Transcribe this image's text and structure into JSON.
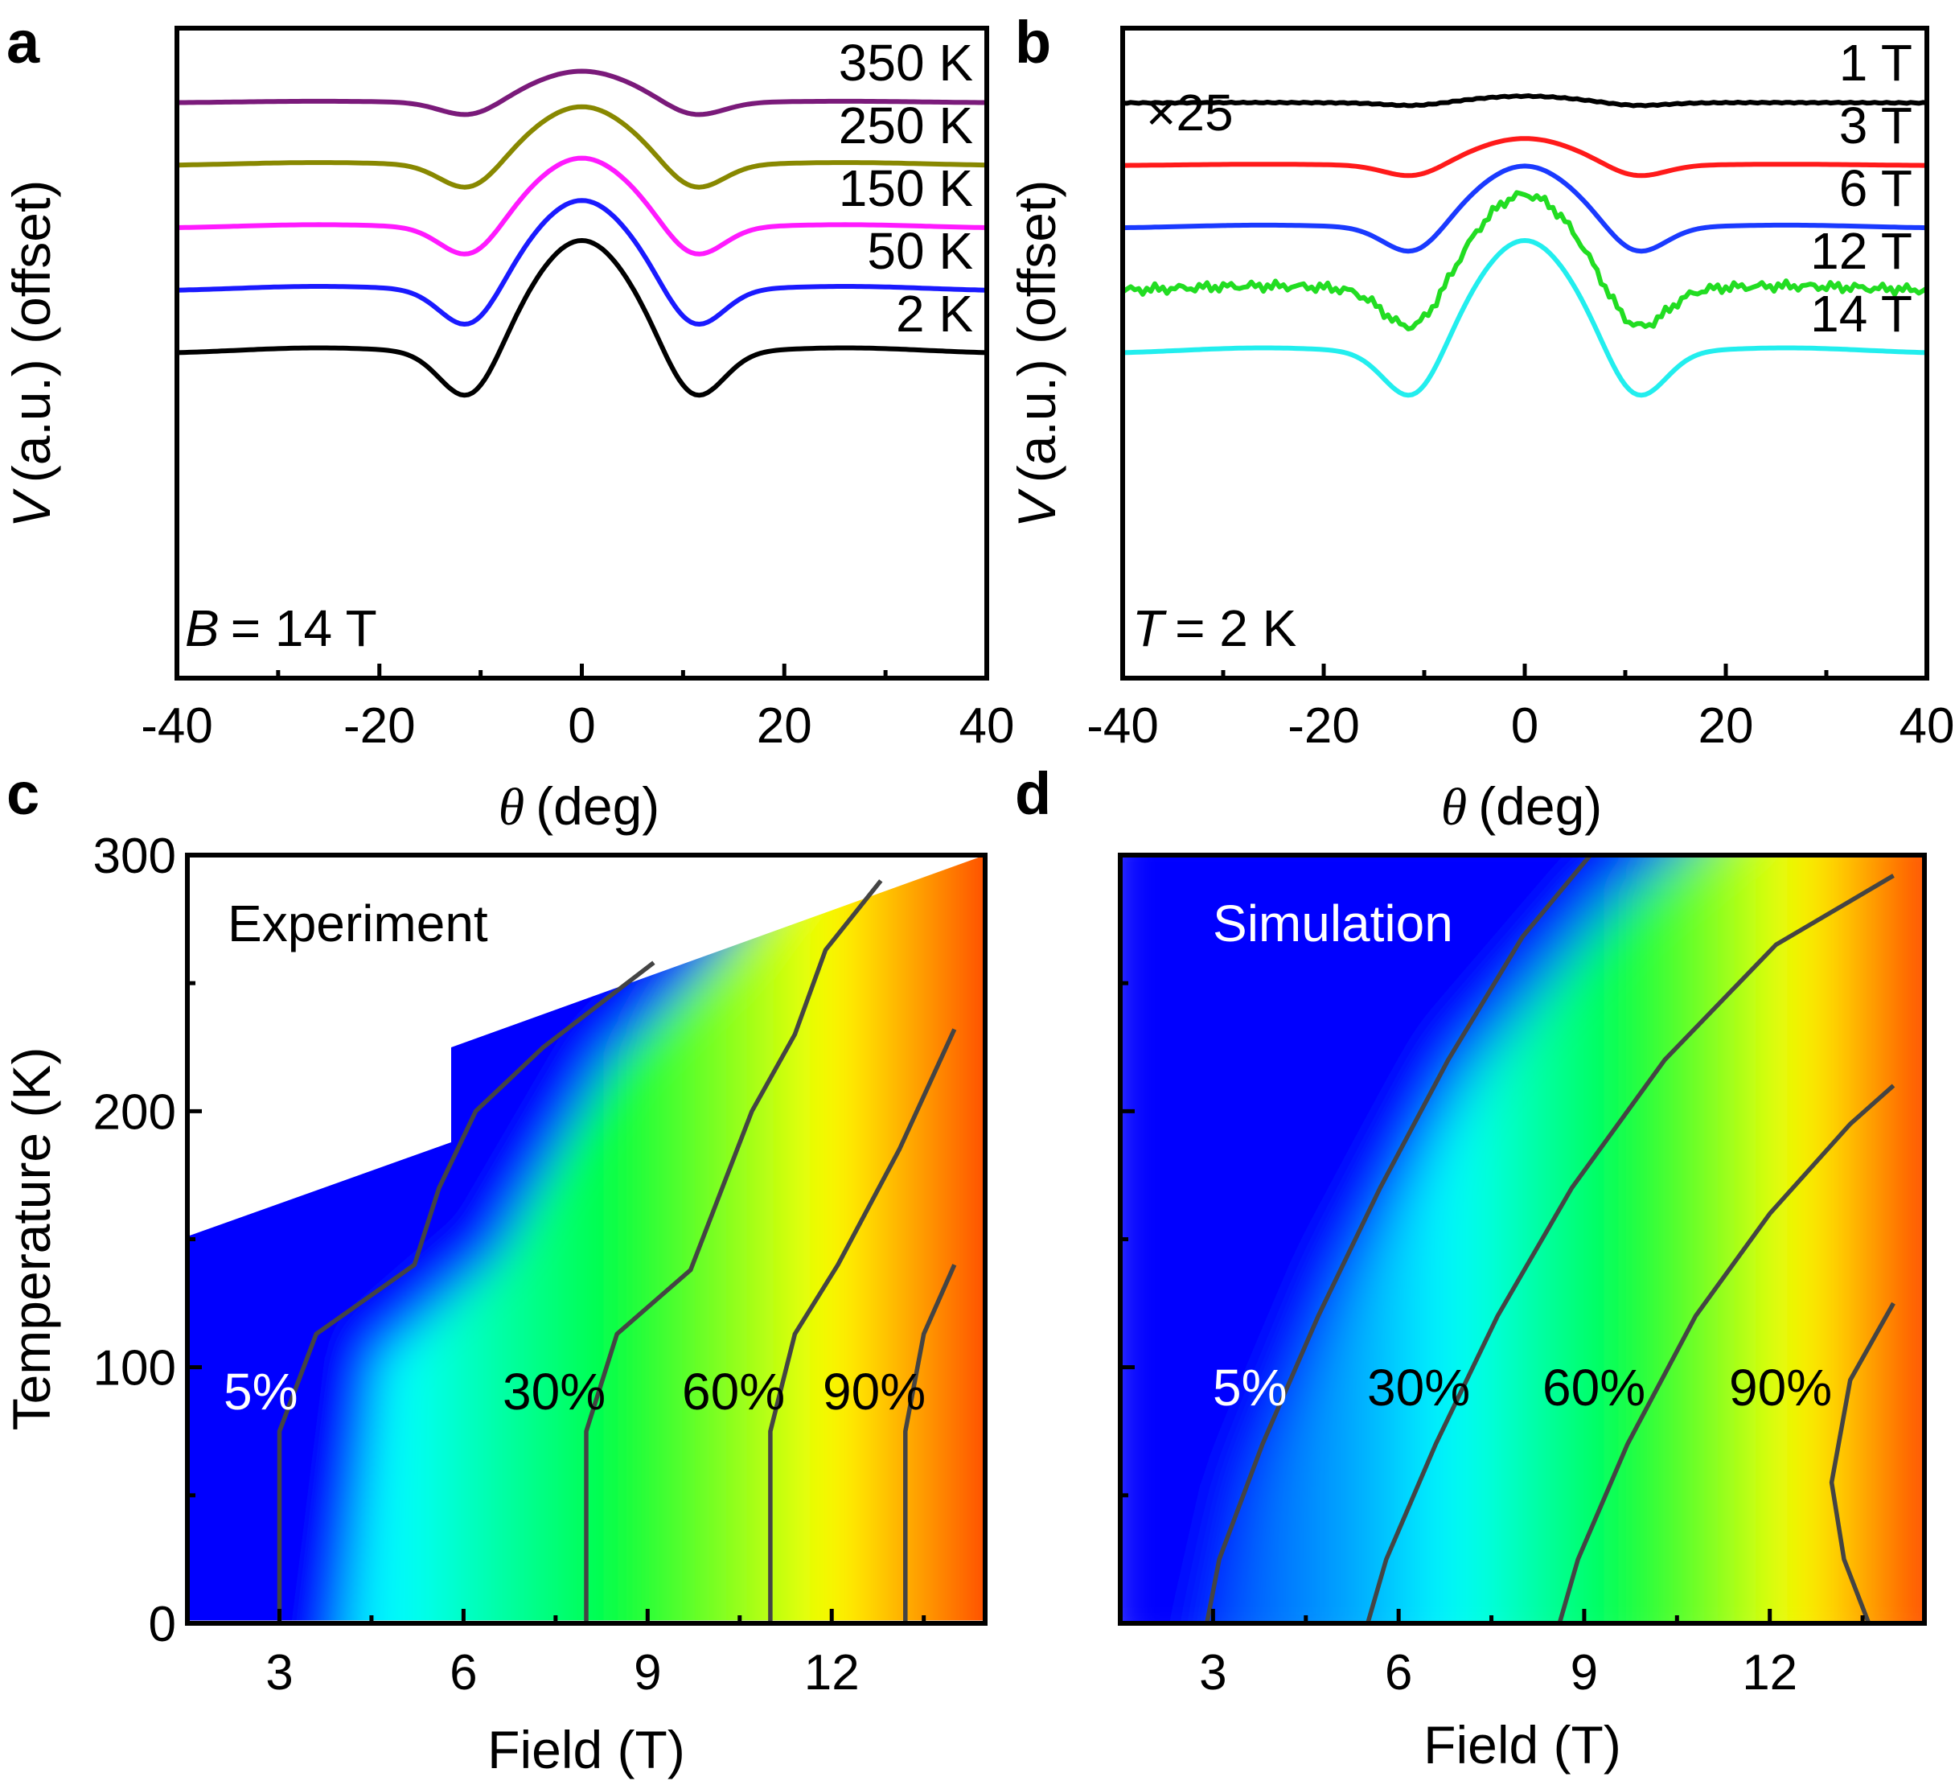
{
  "chart_data": [
    {
      "panel": "a",
      "type": "line",
      "xlabel_symbol": "θ",
      "xlabel_unit": "(deg)",
      "ylabel_symbol": "V",
      "ylabel_rest": "(a.u.) (offset)",
      "xlim": [
        -40,
        40
      ],
      "xticks": [
        "-40",
        "-20",
        "0",
        "20",
        "40"
      ],
      "annotation_symbol": "B",
      "annotation_rest": "= 14 T",
      "series": [
        {
          "name": "350 K",
          "color": "#7a1a7a",
          "offset": 4,
          "scale": 0.28
        },
        {
          "name": "250 K",
          "color": "#888800",
          "offset": 3,
          "scale": 0.52
        },
        {
          "name": "150 K",
          "color": "#ff1aff",
          "offset": 2,
          "scale": 0.62
        },
        {
          "name": "50 K",
          "color": "#1a1aff",
          "offset": 1,
          "scale": 0.8
        },
        {
          "name": "2 K",
          "color": "#000000",
          "offset": 0,
          "scale": 1.0
        }
      ]
    },
    {
      "panel": "b",
      "type": "line",
      "xlabel_symbol": "θ",
      "xlabel_unit": "(deg)",
      "ylabel_symbol": "V",
      "ylabel_rest": "(a.u.) (offset)",
      "xlim": [
        -40,
        40
      ],
      "xticks": [
        "-40",
        "-20",
        "0",
        "20",
        "40"
      ],
      "annotation_symbol": "T",
      "annotation_rest": "= 2 K",
      "multiplier_note": "×25",
      "series": [
        {
          "name": "1 T",
          "color": "#000000",
          "offset": 4,
          "scale": 0.06
        },
        {
          "name": "3 T",
          "color": "#ff1a1a",
          "offset": 3,
          "scale": 0.24
        },
        {
          "name": "6 T",
          "color": "#1a3aff",
          "offset": 2,
          "scale": 0.55
        },
        {
          "name": "12 T",
          "color": "#22dd22",
          "offset": 1,
          "scale": 0.85
        },
        {
          "name": "14 T",
          "color": "#22eeee",
          "offset": 0,
          "scale": 1.0
        }
      ]
    },
    {
      "panel": "c",
      "type": "heatmap",
      "title": "Experiment",
      "xlabel": "Field (T)",
      "ylabel": "Temperature (K)",
      "xlim": [
        1.5,
        14.5
      ],
      "ylim": [
        0,
        300
      ],
      "xticks": [
        "3",
        "6",
        "9",
        "12"
      ],
      "yticks": [
        "0",
        "100",
        "200",
        "300"
      ],
      "contour_labels": [
        "5%",
        "30%",
        "60%",
        "90%"
      ],
      "contours": [
        {
          "level": "5%",
          "points": [
            [
              3.0,
              0
            ],
            [
              3.0,
              75
            ],
            [
              3.6,
              113
            ],
            [
              5.2,
              140
            ],
            [
              5.6,
              170
            ],
            [
              6.2,
              200
            ],
            [
              7.3,
              225
            ],
            [
              9.1,
              258
            ]
          ]
        },
        {
          "level": "30%",
          "points": [
            [
              8.0,
              0
            ],
            [
              8.0,
              75
            ],
            [
              8.5,
              113
            ],
            [
              9.7,
              138
            ],
            [
              10.7,
              200
            ],
            [
              11.4,
              230
            ],
            [
              11.9,
              263
            ],
            [
              12.8,
              290
            ]
          ]
        },
        {
          "level": "60%",
          "points": [
            [
              11.0,
              0
            ],
            [
              11.0,
              75
            ],
            [
              11.4,
              113
            ],
            [
              12.1,
              140
            ],
            [
              13.1,
              185
            ],
            [
              14.0,
              232
            ]
          ]
        },
        {
          "level": "90%",
          "points": [
            [
              13.2,
              0
            ],
            [
              13.2,
              75
            ],
            [
              13.5,
              113
            ],
            [
              14.0,
              140
            ]
          ]
        }
      ]
    },
    {
      "panel": "d",
      "type": "heatmap",
      "title": "Simulation",
      "xlabel": "Field (T)",
      "ylabel": "Temperature (K)",
      "xlim": [
        1.5,
        14.5
      ],
      "ylim": [
        0,
        300
      ],
      "xticks": [
        "3",
        "6",
        "9",
        "12"
      ],
      "yticks": [
        "0",
        "100",
        "200",
        "300"
      ],
      "contour_labels": [
        "5%",
        "30%",
        "60%",
        "90%"
      ],
      "contours": [
        {
          "level": "5%",
          "points": [
            [
              2.9,
              0
            ],
            [
              3.1,
              25
            ],
            [
              3.8,
              70
            ],
            [
              4.7,
              120
            ],
            [
              5.7,
              170
            ],
            [
              6.8,
              220
            ],
            [
              8.0,
              268
            ],
            [
              9.1,
              300
            ]
          ]
        },
        {
          "level": "30%",
          "points": [
            [
              5.5,
              0
            ],
            [
              5.8,
              25
            ],
            [
              6.6,
              70
            ],
            [
              7.6,
              120
            ],
            [
              8.8,
              170
            ],
            [
              10.3,
              220
            ],
            [
              12.1,
              265
            ],
            [
              14.0,
              292
            ]
          ]
        },
        {
          "level": "60%",
          "points": [
            [
              8.6,
              0
            ],
            [
              8.9,
              25
            ],
            [
              9.7,
              70
            ],
            [
              10.8,
              120
            ],
            [
              12.0,
              160
            ],
            [
              13.3,
              195
            ],
            [
              14.0,
              210
            ]
          ]
        },
        {
          "level": "90%",
          "points": [
            [
              13.6,
              0
            ],
            [
              13.2,
              25
            ],
            [
              13.0,
              55
            ],
            [
              13.3,
              95
            ],
            [
              14.0,
              125
            ]
          ]
        }
      ]
    }
  ]
}
